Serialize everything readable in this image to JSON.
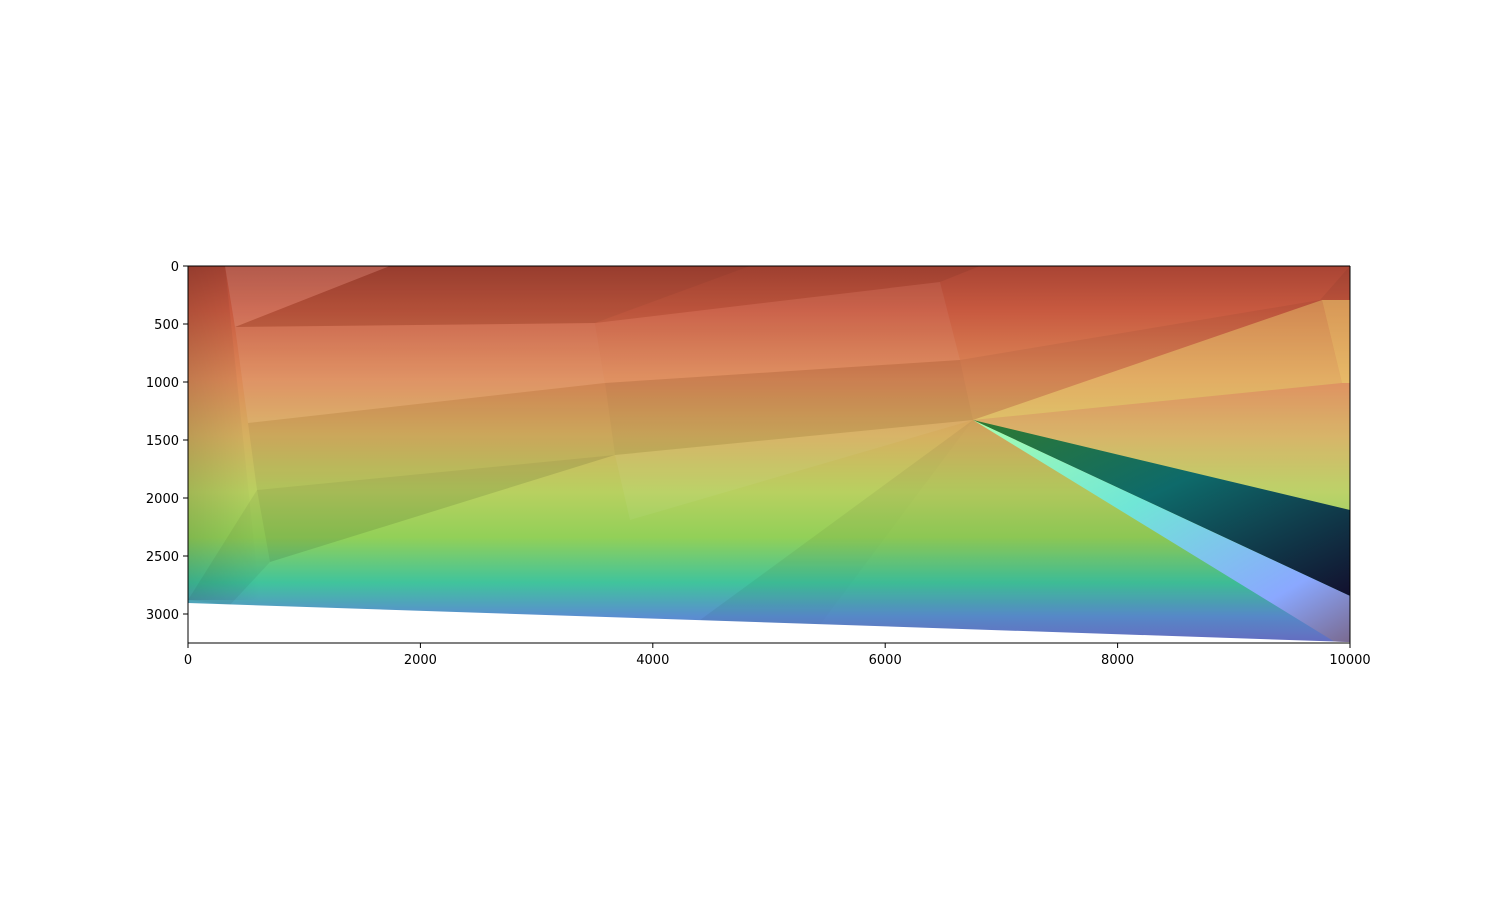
{
  "chart_data": {
    "type": "heatmap",
    "title": "",
    "xlabel": "",
    "ylabel": "",
    "xlim": [
      0,
      10000
    ],
    "ylim": [
      3250,
      0
    ],
    "y_inverted": true,
    "grid": false,
    "legend": "none",
    "colormap": "rainbow-like (red at top, through orange, yellow, green, teal, blue, to dark navy) with hillshade-style faceted shading",
    "xticks": [
      0,
      2000,
      4000,
      6000,
      8000,
      10000
    ],
    "xtick_labels": [
      "0",
      "2000",
      "4000",
      "6000",
      "8000",
      "10000"
    ],
    "yticks": [
      0,
      500,
      1000,
      1500,
      2000,
      2500,
      3000
    ],
    "ytick_labels": [
      "0",
      "500",
      "1000",
      "1500",
      "2000",
      "2500",
      "3000"
    ],
    "data_extent_bottom_edge": [
      [
        0,
        2900
      ],
      [
        10000,
        3230
      ]
    ],
    "colors": {
      "red": "#b84a35",
      "orange": "#dd8a55",
      "yellow": "#cfe070",
      "green": "#8fd060",
      "teal": "#40c8a0",
      "blue": "#6080d8",
      "navy": "#1a1840",
      "background": "#ffffff",
      "axes": "#000000"
    }
  }
}
